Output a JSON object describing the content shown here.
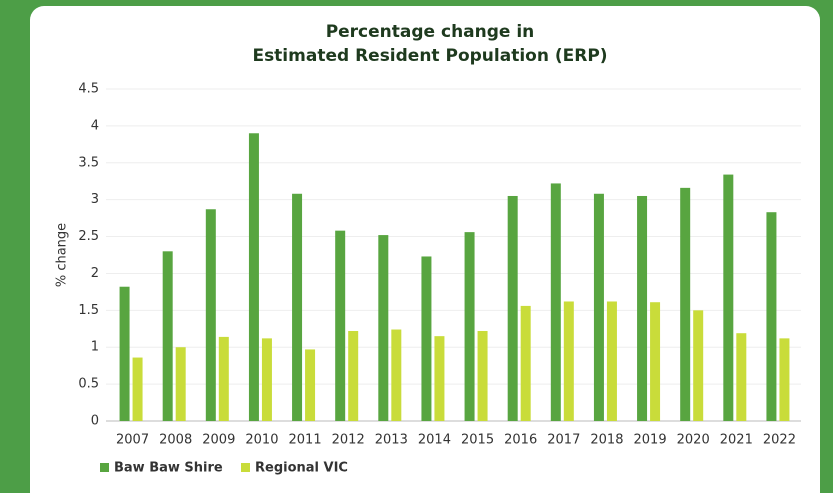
{
  "chart_data": {
    "type": "bar",
    "title": [
      "Percentage change in",
      "Estimated Resident Population (ERP)"
    ],
    "y_label": "% change",
    "categories": [
      "2007",
      "2008",
      "2009",
      "2010",
      "2011",
      "2012",
      "2013",
      "2014",
      "2015",
      "2016",
      "2017",
      "2018",
      "2019",
      "2020",
      "2021",
      "2022"
    ],
    "series": [
      {
        "name": "Baw Baw Shire",
        "color": "#58a540",
        "values": [
          1.82,
          2.3,
          2.87,
          3.9,
          3.08,
          2.58,
          2.52,
          2.23,
          2.56,
          3.05,
          3.22,
          3.08,
          3.05,
          3.16,
          3.34,
          2.83
        ]
      },
      {
        "name": "Regional VIC",
        "color": "#c9dc3a",
        "values": [
          0.86,
          1.0,
          1.14,
          1.12,
          0.97,
          1.22,
          1.24,
          1.15,
          1.22,
          1.56,
          1.62,
          1.62,
          1.61,
          1.5,
          1.19,
          1.12
        ]
      }
    ],
    "ylim": [
      0,
      4.5
    ],
    "yticks": [
      0,
      0.5,
      1,
      1.5,
      2,
      2.5,
      3,
      3.5,
      4,
      4.5
    ],
    "grid": true,
    "legend": "bottom-left"
  }
}
